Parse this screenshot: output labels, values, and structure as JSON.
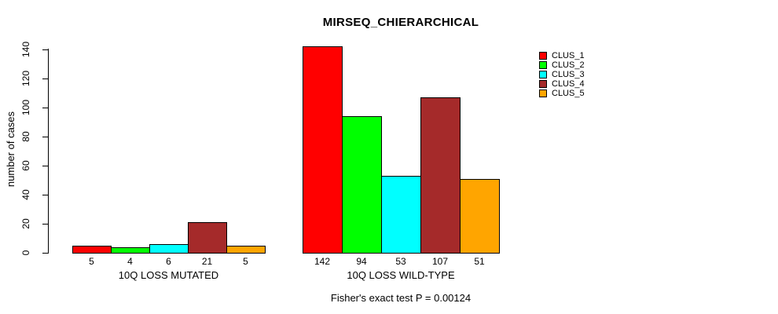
{
  "chart_data": {
    "type": "bar",
    "title": "MIRSEQ_CHIERARCHICAL",
    "ylabel": "number of cases",
    "xlabel": "",
    "annotation": "Fisher's exact test P = 0.00124",
    "ylim": [
      0,
      140
    ],
    "yticks": [
      0,
      20,
      40,
      60,
      80,
      100,
      120,
      140
    ],
    "categories": [
      "10Q LOSS MUTATED",
      "10Q LOSS WILD-TYPE"
    ],
    "series": [
      {
        "name": "CLUS_1",
        "color": "#FF0000",
        "values": [
          5,
          142
        ]
      },
      {
        "name": "CLUS_2",
        "color": "#00FF00",
        "values": [
          4,
          94
        ]
      },
      {
        "name": "CLUS_3",
        "color": "#00FFFF",
        "values": [
          6,
          53
        ]
      },
      {
        "name": "CLUS_4",
        "color": "#A52A2A",
        "values": [
          21,
          107
        ]
      },
      {
        "name": "CLUS_5",
        "color": "#FFA500",
        "values": [
          5,
          51
        ]
      }
    ],
    "bar_value_labels_shown": true,
    "legend_position": "top-right",
    "grid": false,
    "background": "#FFFFFF",
    "axis_color": "#000000"
  }
}
